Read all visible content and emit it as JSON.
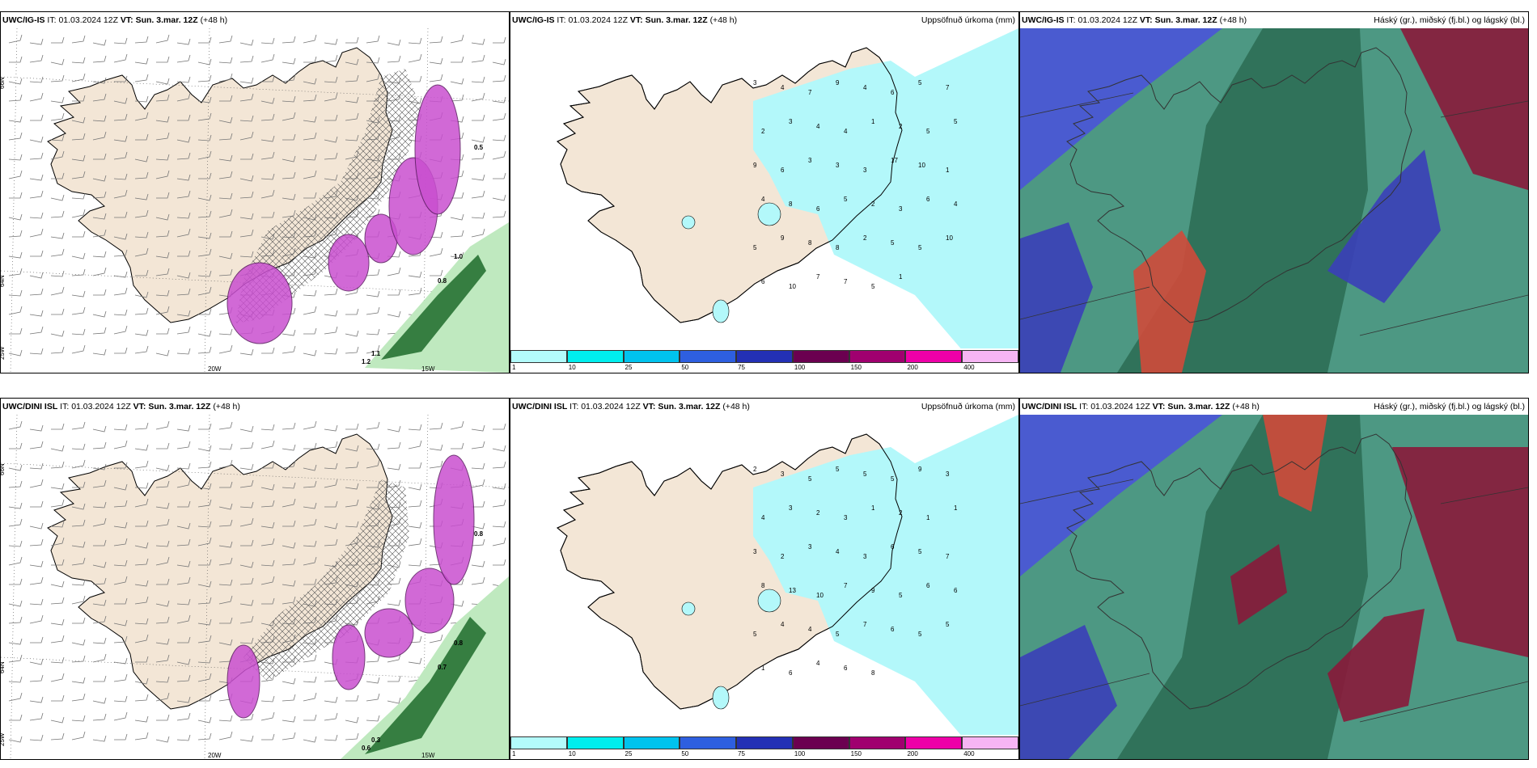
{
  "panels": [
    {
      "model": "UWC/IG-IS",
      "it_label": "IT:",
      "it": "01.03.2024 12Z",
      "vt_label": "VT:",
      "vt": "Sun. 3.mar. 12Z",
      "lead": "(+48 h)",
      "right_title": "",
      "kind": "wind"
    },
    {
      "model": "UWC/IG-IS",
      "it_label": "IT:",
      "it": "01.03.2024 12Z",
      "vt_label": "VT:",
      "vt": "Sun. 3.mar. 12Z",
      "lead": "(+48 h)",
      "right_title": "Uppsöfnuð úrkoma (mm)",
      "kind": "precip"
    },
    {
      "model": "UWC/IG-IS",
      "it_label": "IT:",
      "it": "01.03.2024 12Z",
      "vt_label": "VT:",
      "vt": "Sun. 3.mar. 12Z",
      "lead": "(+48 h)",
      "right_title": "Háský (gr.), miðský (fj.bl.) og lágský (bl.)",
      "kind": "cloud"
    },
    {
      "model": "UWC/DINI ISL",
      "it_label": "IT:",
      "it": "01.03.2024 12Z",
      "vt_label": "VT:",
      "vt": "Sun. 3.mar. 12Z",
      "lead": "(+48 h)",
      "right_title": "",
      "kind": "wind"
    },
    {
      "model": "UWC/DINI ISL",
      "it_label": "IT:",
      "it": "01.03.2024 12Z",
      "vt_label": "VT:",
      "vt": "Sun. 3.mar. 12Z",
      "lead": "(+48 h)",
      "right_title": "Uppsöfnuð úrkoma (mm)",
      "kind": "precip"
    },
    {
      "model": "UWC/DINI ISL",
      "it_label": "IT:",
      "it": "01.03.2024 12Z",
      "vt_label": "VT:",
      "vt": "Sun. 3.mar. 12Z",
      "lead": "(+48 h)",
      "right_title": "Háský (gr.), miðský (fj.bl.) og lágský (bl.)",
      "kind": "cloud"
    }
  ],
  "grid_labels": {
    "lat_top": "66N",
    "lat_mid": "64N",
    "lon_left": "25W",
    "lon_20": "20W",
    "lon_15": "15W"
  },
  "wind_values": {
    "top": [
      "1.0",
      "0.8",
      "1.1",
      "1.2",
      "0.5"
    ],
    "bottom": [
      "0.8",
      "0.7",
      "0.3",
      "0.6",
      "0.8"
    ]
  },
  "precip_values": {
    "top": [
      "3",
      "4",
      "7",
      "9",
      "4",
      "6",
      "5",
      "7",
      "2",
      "3",
      "4",
      "4",
      "1",
      "2",
      "5",
      "5",
      "9",
      "6",
      "3",
      "3",
      "3",
      "17",
      "10",
      "1",
      "4",
      "8",
      "6",
      "5",
      "2",
      "3",
      "6",
      "4",
      "5",
      "9",
      "8",
      "8",
      "2",
      "5",
      "5",
      "10",
      "6",
      "10",
      "7",
      "7",
      "5",
      "1"
    ],
    "bottom": [
      "2",
      "3",
      "5",
      "5",
      "5",
      "5",
      "9",
      "3",
      "4",
      "3",
      "2",
      "3",
      "1",
      "2",
      "1",
      "1",
      "3",
      "2",
      "3",
      "4",
      "3",
      "6",
      "5",
      "7",
      "8",
      "13",
      "10",
      "7",
      "9",
      "5",
      "6",
      "6",
      "5",
      "4",
      "4",
      "5",
      "7",
      "6",
      "5",
      "5",
      "1",
      "6",
      "4",
      "6",
      "8"
    ]
  },
  "colorbar": {
    "ticks": [
      "1",
      "10",
      "25",
      "50",
      "75",
      "100",
      "150",
      "200",
      "400"
    ],
    "colors": [
      "#b3fbfb",
      "#00eeee",
      "#00c3ee",
      "#2e5fe0",
      "#2330b5",
      "#6b0050",
      "#a0006f",
      "#ee00a8",
      "#f6b5f4"
    ]
  },
  "colors": {
    "land": "#f3e6d6",
    "sea": "#ffffff",
    "precip_light": "#b3f8fa",
    "green_dark": "#1d6b2a",
    "magenta": "#c94fd0"
  }
}
